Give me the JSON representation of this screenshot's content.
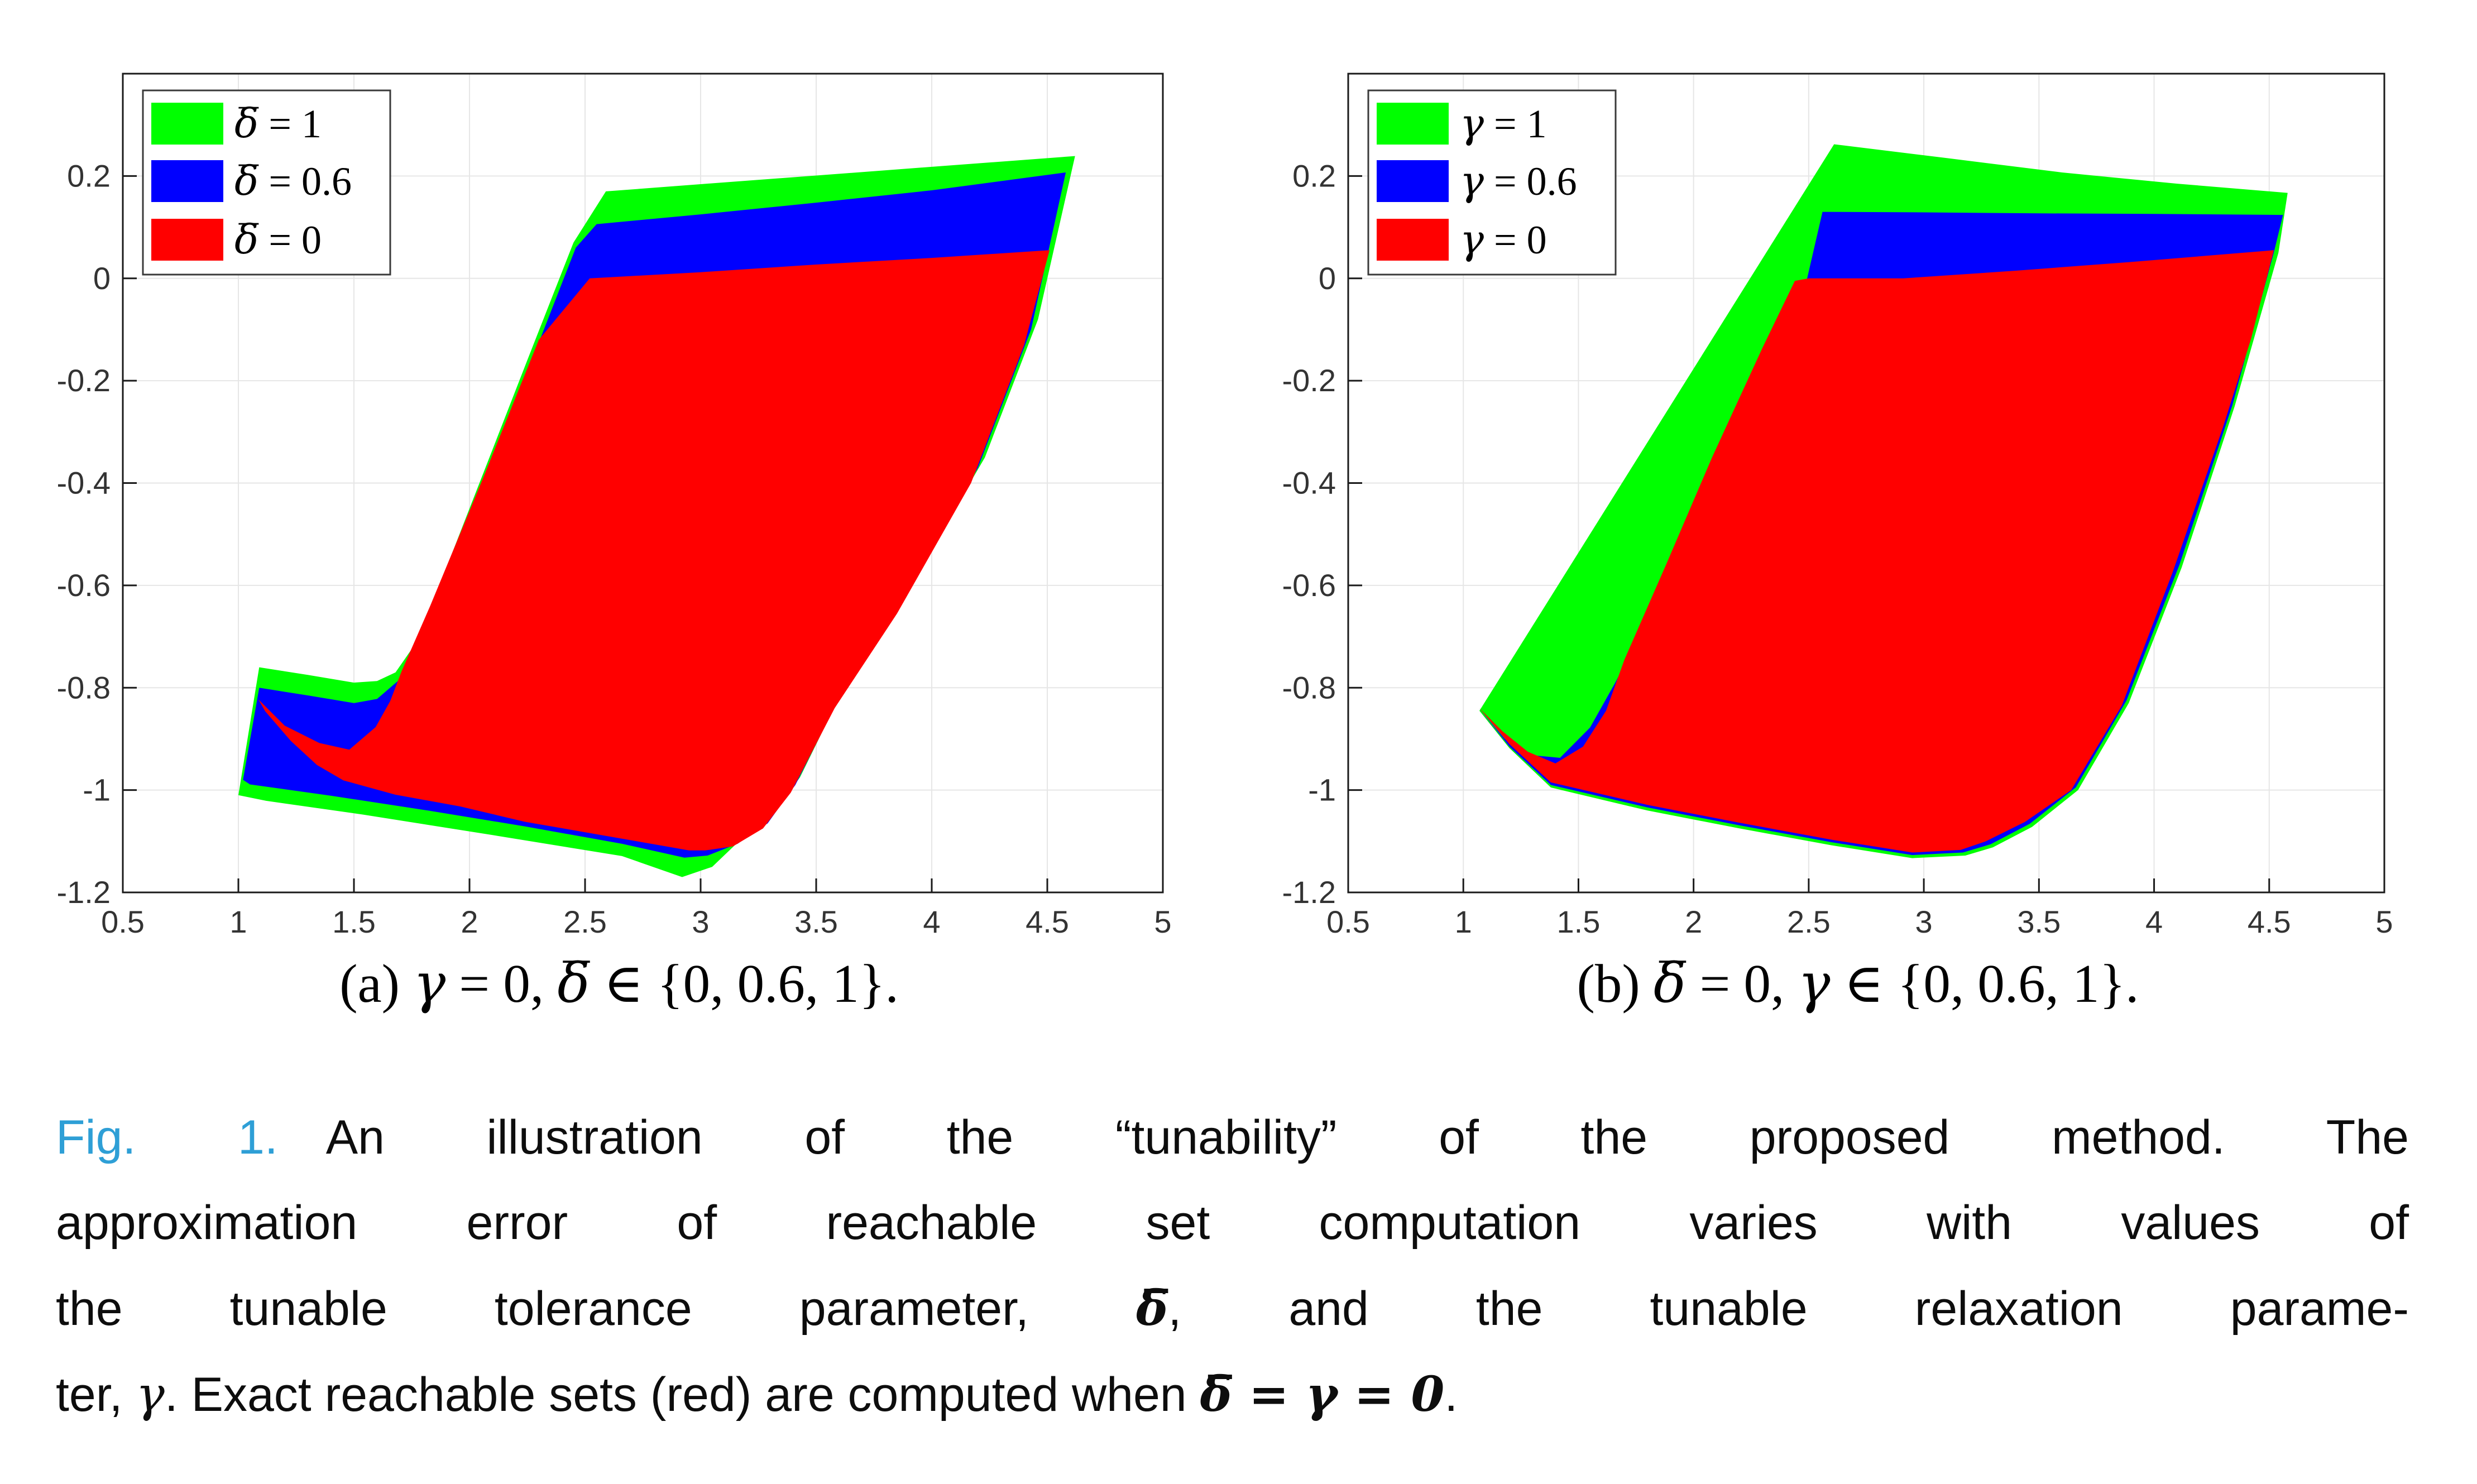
{
  "page": {
    "background": "#ffffff"
  },
  "colors": {
    "green": "#00ff00",
    "blue": "#0000ff",
    "red": "#ff0000",
    "grid": "#e6e6e6",
    "axis": "#1a1a1a",
    "tick_label": "#333333",
    "caption_label_blue": "#2e9fd6"
  },
  "figure": {
    "caption": {
      "label": "Fig. 1.",
      "lines": [
        [
          {
            "t": "Fig. 1.",
            "s": "figlabel"
          },
          {
            "t": "  An illustration of the “tunability” of the proposed method. The",
            "s": ""
          }
        ],
        [
          {
            "t": "approximation error of reachable set computation varies with values of",
            "s": ""
          }
        ],
        [
          {
            "t": "the tunable tolerance parameter, ",
            "s": ""
          },
          {
            "t": "δ̅",
            "s": "mathbold"
          },
          {
            "t": ", and the tunable relaxation parame-",
            "s": ""
          }
        ],
        [
          {
            "t": "ter, ",
            "s": ""
          },
          {
            "t": "γ",
            "s": "math"
          },
          {
            "t": ". Exact reachable sets (red) are computed when ",
            "s": ""
          },
          {
            "t": "δ̅ = γ = 0",
            "s": "mathbold"
          },
          {
            "t": ".",
            "s": ""
          }
        ]
      ]
    }
  },
  "chart_data": [
    {
      "id": "a",
      "type": "area",
      "title": "",
      "xlabel": "",
      "ylabel": "",
      "xlim": [
        0.5,
        5
      ],
      "ylim": [
        -1.2,
        0.4
      ],
      "xticks": [
        "0.5",
        "1",
        "1.5",
        "2",
        "2.5",
        "3",
        "3.5",
        "4",
        "4.5",
        "5"
      ],
      "xtick_values": [
        0.5,
        1,
        1.5,
        2,
        2.5,
        3,
        3.5,
        4,
        4.5,
        5
      ],
      "yticks": [
        "0.2",
        "0",
        "-0.2",
        "-0.4",
        "-0.6",
        "-0.8",
        "-1",
        "-1.2"
      ],
      "ytick_values": [
        0.2,
        0,
        -0.2,
        -0.4,
        -0.6,
        -0.8,
        -1,
        -1.2
      ],
      "grid": true,
      "legend_position": "top-left",
      "subcaption": "(a) γ = 0, δ̅ ∈ {0, 0.6, 1}.",
      "series": [
        {
          "name": "δ̅ = 1",
          "color": "#00ff00",
          "polygon": [
            [
              1.0,
              -1.01
            ],
            [
              1.09,
              -0.76
            ],
            [
              1.3,
              -0.775
            ],
            [
              1.5,
              -0.79
            ],
            [
              1.6,
              -0.787
            ],
            [
              1.68,
              -0.77
            ],
            [
              1.78,
              -0.705
            ],
            [
              2.0,
              -0.45
            ],
            [
              2.25,
              -0.16
            ],
            [
              2.45,
              0.07
            ],
            [
              2.59,
              0.17
            ],
            [
              3.0,
              0.184
            ],
            [
              3.5,
              0.201
            ],
            [
              4.0,
              0.218
            ],
            [
              4.62,
              0.239
            ],
            [
              4.46,
              -0.08
            ],
            [
              4.23,
              -0.35
            ],
            [
              3.89,
              -0.612
            ],
            [
              3.62,
              -0.8
            ],
            [
              3.43,
              -0.975
            ],
            [
              3.31,
              -1.051
            ],
            [
              3.18,
              -1.094
            ],
            [
              3.05,
              -1.15
            ],
            [
              2.92,
              -1.17
            ],
            [
              2.66,
              -1.129
            ],
            [
              2.1,
              -1.088
            ],
            [
              1.54,
              -1.048
            ],
            [
              1.12,
              -1.021
            ],
            [
              1.0,
              -1.01
            ]
          ]
        },
        {
          "name": "δ̅ = 0.6",
          "color": "#0000ff",
          "polygon": [
            [
              1.02,
              -0.98
            ],
            [
              1.09,
              -0.8
            ],
            [
              1.3,
              -0.815
            ],
            [
              1.5,
              -0.83
            ],
            [
              1.6,
              -0.822
            ],
            [
              1.7,
              -0.783
            ],
            [
              1.8,
              -0.7
            ],
            [
              2.02,
              -0.45
            ],
            [
              2.27,
              -0.16
            ],
            [
              2.46,
              0.06
            ],
            [
              2.55,
              0.106
            ],
            [
              3.0,
              0.125
            ],
            [
              3.5,
              0.148
            ],
            [
              4.0,
              0.172
            ],
            [
              4.58,
              0.207
            ],
            [
              4.43,
              -0.1
            ],
            [
              4.2,
              -0.37
            ],
            [
              3.87,
              -0.63
            ],
            [
              3.6,
              -0.82
            ],
            [
              3.41,
              -0.99
            ],
            [
              3.29,
              -1.065
            ],
            [
              3.16,
              -1.105
            ],
            [
              3.03,
              -1.128
            ],
            [
              2.93,
              -1.132
            ],
            [
              2.66,
              -1.105
            ],
            [
              2.24,
              -1.071
            ],
            [
              1.82,
              -1.04
            ],
            [
              1.4,
              -1.011
            ],
            [
              1.05,
              -0.989
            ],
            [
              1.02,
              -0.98
            ]
          ]
        },
        {
          "name": "δ̅ = 0",
          "color": "#ff0000",
          "polygon": [
            [
              1.087,
              -0.823
            ],
            [
              1.2,
              -0.874
            ],
            [
              1.35,
              -0.908
            ],
            [
              1.48,
              -0.921
            ],
            [
              1.594,
              -0.877
            ],
            [
              1.657,
              -0.826
            ],
            [
              1.706,
              -0.768
            ],
            [
              1.83,
              -0.64
            ],
            [
              2.05,
              -0.4
            ],
            [
              2.3,
              -0.12
            ],
            [
              2.52,
              0.0
            ],
            [
              3.0,
              0.012
            ],
            [
              3.5,
              0.027
            ],
            [
              4.0,
              0.04
            ],
            [
              4.51,
              0.055
            ],
            [
              4.4,
              -0.13
            ],
            [
              4.17,
              -0.4
            ],
            [
              3.85,
              -0.655
            ],
            [
              3.58,
              -0.84
            ],
            [
              3.39,
              -1.005
            ],
            [
              3.27,
              -1.075
            ],
            [
              3.14,
              -1.11
            ],
            [
              3.02,
              -1.118
            ],
            [
              2.95,
              -1.118
            ],
            [
              2.66,
              -1.095
            ],
            [
              2.24,
              -1.062
            ],
            [
              1.96,
              -1.032
            ],
            [
              1.679,
              -1.009
            ],
            [
              1.454,
              -0.981
            ],
            [
              1.34,
              -0.951
            ],
            [
              1.227,
              -0.904
            ],
            [
              1.116,
              -0.846
            ],
            [
              1.087,
              -0.823
            ]
          ]
        }
      ]
    },
    {
      "id": "b",
      "type": "area",
      "title": "",
      "xlabel": "",
      "ylabel": "",
      "xlim": [
        0.5,
        5
      ],
      "ylim": [
        -1.2,
        0.4
      ],
      "xticks": [
        "0.5",
        "1",
        "1.5",
        "2",
        "2.5",
        "3",
        "3.5",
        "4",
        "4.5",
        "5"
      ],
      "xtick_values": [
        0.5,
        1,
        1.5,
        2,
        2.5,
        3,
        3.5,
        4,
        4.5,
        5
      ],
      "yticks": [
        "0.2",
        "0",
        "-0.2",
        "-0.4",
        "-0.6",
        "-0.8",
        "-1",
        "-1.2"
      ],
      "ytick_values": [
        0.2,
        0,
        -0.2,
        -0.4,
        -0.6,
        -0.8,
        -1,
        -1.2
      ],
      "grid": true,
      "legend_position": "top-left",
      "subcaption": "(b) δ̅ = 0, γ ∈ {0, 0.6, 1}.",
      "series": [
        {
          "name": "γ = 1",
          "color": "#00ff00",
          "polygon": [
            [
              1.07,
              -0.845
            ],
            [
              2.61,
              0.262
            ],
            [
              3.1,
              0.235
            ],
            [
              3.6,
              0.207
            ],
            [
              4.1,
              0.185
            ],
            [
              4.58,
              0.167
            ],
            [
              4.54,
              0.05
            ],
            [
              4.35,
              -0.25
            ],
            [
              4.12,
              -0.565
            ],
            [
              3.89,
              -0.83
            ],
            [
              3.67,
              -1.0
            ],
            [
              3.47,
              -1.072
            ],
            [
              3.3,
              -1.112
            ],
            [
              3.18,
              -1.128
            ],
            [
              2.95,
              -1.133
            ],
            [
              2.6,
              -1.108
            ],
            [
              2.2,
              -1.075
            ],
            [
              1.8,
              -1.04
            ],
            [
              1.38,
              -0.995
            ],
            [
              1.2,
              -0.918
            ],
            [
              1.07,
              -0.845
            ]
          ]
        },
        {
          "name": "γ = 0.6",
          "color": "#0000ff",
          "polygon": [
            [
              1.07,
              -0.842
            ],
            [
              1.18,
              -0.9
            ],
            [
              1.3,
              -0.932
            ],
            [
              1.42,
              -0.937
            ],
            [
              1.55,
              -0.878
            ],
            [
              1.66,
              -0.79
            ],
            [
              1.74,
              -0.72
            ],
            [
              1.97,
              -0.47
            ],
            [
              2.25,
              -0.215
            ],
            [
              2.46,
              -0.065
            ],
            [
              2.56,
              0.13
            ],
            [
              3.0,
              0.129
            ],
            [
              3.5,
              0.127
            ],
            [
              4.0,
              0.126
            ],
            [
              4.56,
              0.124
            ],
            [
              4.52,
              0.05
            ],
            [
              4.34,
              -0.248
            ],
            [
              4.11,
              -0.56
            ],
            [
              3.88,
              -0.825
            ],
            [
              3.66,
              -0.995
            ],
            [
              3.46,
              -1.066
            ],
            [
              3.29,
              -1.106
            ],
            [
              3.17,
              -1.122
            ],
            [
              2.95,
              -1.127
            ],
            [
              2.6,
              -1.102
            ],
            [
              2.2,
              -1.069
            ],
            [
              1.8,
              -1.034
            ],
            [
              1.38,
              -0.99
            ],
            [
              1.2,
              -0.915
            ],
            [
              1.07,
              -0.842
            ]
          ]
        },
        {
          "name": "γ = 0",
          "color": "#ff0000",
          "polygon": [
            [
              1.07,
              -0.84
            ],
            [
              1.17,
              -0.885
            ],
            [
              1.28,
              -0.925
            ],
            [
              1.4,
              -0.948
            ],
            [
              1.52,
              -0.915
            ],
            [
              1.62,
              -0.845
            ],
            [
              1.7,
              -0.745
            ],
            [
              1.88,
              -0.56
            ],
            [
              2.08,
              -0.35
            ],
            [
              2.3,
              -0.135
            ],
            [
              2.44,
              -0.005
            ],
            [
              2.5,
              0.0
            ],
            [
              2.91,
              0.0
            ],
            [
              3.4,
              0.015
            ],
            [
              3.9,
              0.032
            ],
            [
              4.52,
              0.055
            ],
            [
              4.42,
              -0.12
            ],
            [
              4.3,
              -0.29
            ],
            [
              4.08,
              -0.575
            ],
            [
              3.86,
              -0.835
            ],
            [
              3.64,
              -1.0
            ],
            [
              3.44,
              -1.062
            ],
            [
              3.27,
              -1.1
            ],
            [
              3.16,
              -1.117
            ],
            [
              2.95,
              -1.122
            ],
            [
              2.6,
              -1.097
            ],
            [
              2.2,
              -1.064
            ],
            [
              1.8,
              -1.029
            ],
            [
              1.38,
              -0.985
            ],
            [
              1.2,
              -0.91
            ],
            [
              1.07,
              -0.84
            ]
          ]
        }
      ]
    }
  ]
}
